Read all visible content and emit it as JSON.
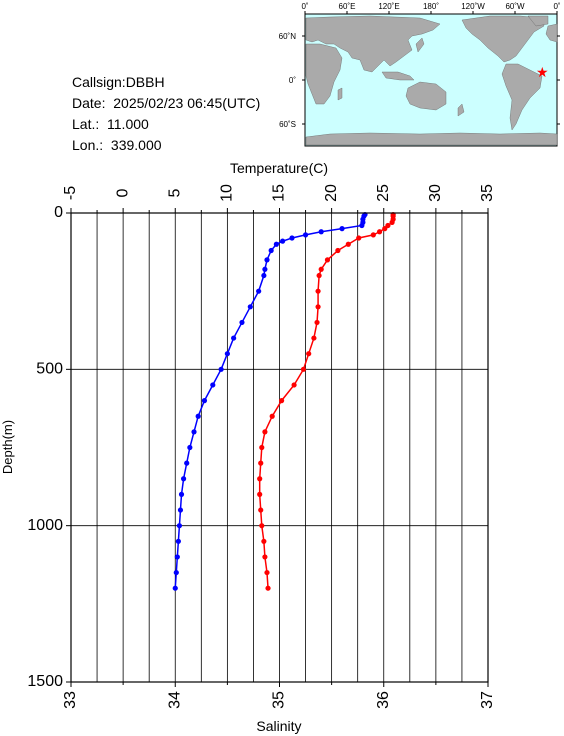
{
  "info": {
    "callsign": "Callsign:DBBH",
    "date": "Date:  2025/02/23 06:45(UTC)",
    "lat": "Lat.:  11.000",
    "lon": "Lon.:  339.000"
  },
  "map": {
    "top_labels": [
      "0˚",
      "60˚E",
      "120˚E",
      "180˚",
      "120˚W",
      "60˚W",
      "0˚"
    ],
    "left_labels": [
      "60˚N",
      "0˚",
      "60˚S"
    ],
    "marker_lat": 11.0,
    "marker_lon": 339.0,
    "ocean_color": "#ccffff",
    "land_color": "#aaaaaa",
    "marker_color": "#ff0000"
  },
  "chart_data": {
    "type": "line",
    "title": "",
    "xlabel_top": "Temperature(C)",
    "xlabel_bottom": "Salinity",
    "ylabel": "Depth(m)",
    "temperature_range": [
      -5,
      35
    ],
    "temperature_ticks": [
      "-5",
      "0",
      "5",
      "10",
      "15",
      "20",
      "25",
      "30",
      "35"
    ],
    "salinity_range": [
      33,
      37
    ],
    "salinity_ticks": [
      "33",
      "34",
      "35",
      "36",
      "37"
    ],
    "depth_range": [
      0,
      1500
    ],
    "depth_ticks": [
      "0",
      "500",
      "1000",
      "1500"
    ],
    "series": [
      {
        "quantity": "temperature",
        "color": "#ff0000",
        "depth": [
          5,
          10,
          20,
          30,
          40,
          50,
          60,
          70,
          80,
          100,
          120,
          150,
          180,
          200,
          250,
          300,
          350,
          400,
          450,
          500,
          550,
          600,
          650,
          700,
          750,
          800,
          850,
          900,
          950,
          1000,
          1050,
          1100,
          1150,
          1200
        ],
        "values": [
          25.9,
          25.9,
          25.9,
          25.8,
          25.4,
          25.1,
          24.6,
          24.0,
          22.6,
          21.6,
          20.6,
          19.6,
          19.0,
          18.8,
          18.7,
          18.7,
          18.6,
          18.3,
          17.8,
          17.3,
          16.4,
          15.2,
          14.3,
          13.6,
          13.3,
          13.2,
          13.1,
          13.1,
          13.2,
          13.3,
          13.5,
          13.6,
          13.8,
          13.9
        ]
      },
      {
        "quantity": "salinity",
        "color": "#0000ff",
        "depth": [
          5,
          10,
          20,
          30,
          40,
          50,
          60,
          70,
          80,
          90,
          100,
          120,
          150,
          180,
          200,
          250,
          300,
          350,
          400,
          450,
          500,
          550,
          600,
          650,
          700,
          750,
          800,
          850,
          900,
          950,
          1000,
          1050,
          1100,
          1150,
          1200
        ],
        "values": [
          35.82,
          35.81,
          35.8,
          35.8,
          35.79,
          35.6,
          35.4,
          35.25,
          35.12,
          35.03,
          34.97,
          34.92,
          34.88,
          34.86,
          34.85,
          34.8,
          34.72,
          34.64,
          34.56,
          34.5,
          34.44,
          34.36,
          34.28,
          34.22,
          34.18,
          34.14,
          34.11,
          34.08,
          34.06,
          34.05,
          34.04,
          34.03,
          34.02,
          34.01,
          34.0
        ]
      }
    ],
    "grid": true
  }
}
